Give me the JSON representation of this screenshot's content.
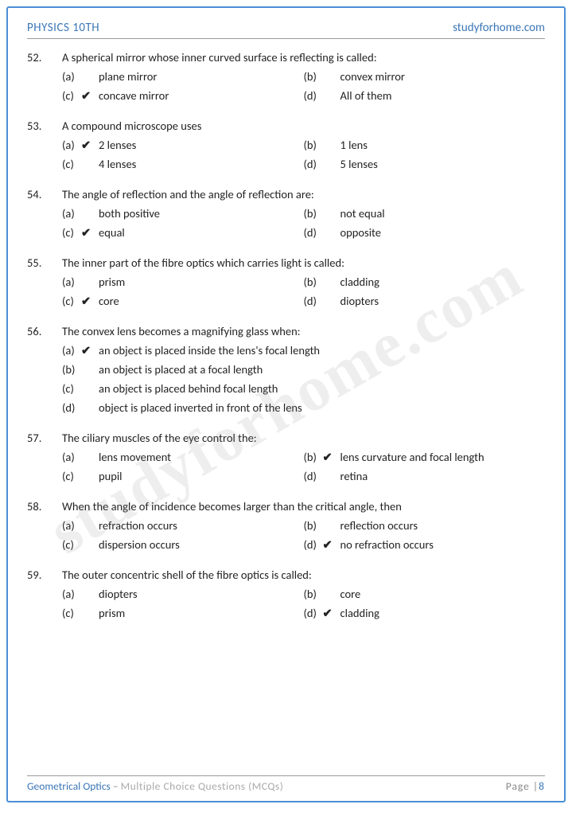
{
  "header": {
    "left": "PHYSICS 10TH",
    "right": "studyforhome.com"
  },
  "watermark": "studyforhome.com",
  "footer": {
    "topic": "Geometrical Optics",
    "sep": " – ",
    "desc": "Multiple Choice Questions (MCQs)",
    "page_label": "Page |",
    "page_num": "8"
  },
  "check_mark": "✔",
  "q": [
    {
      "n": "52.",
      "t": "A spherical mirror whose inner curved surface is reflecting is called:",
      "layout": "2col",
      "o": [
        {
          "l": "(a)",
          "v": "plane mirror",
          "c": false
        },
        {
          "l": "(b)",
          "v": "convex mirror",
          "c": false
        },
        {
          "l": "(c)",
          "v": "concave mirror",
          "c": true
        },
        {
          "l": "(d)",
          "v": "All of them",
          "c": false
        }
      ]
    },
    {
      "n": "53.",
      "t": "A compound microscope uses",
      "layout": "2col",
      "o": [
        {
          "l": "(a)",
          "v": "2 lenses",
          "c": true
        },
        {
          "l": "(b)",
          "v": "1 lens",
          "c": false
        },
        {
          "l": "(c)",
          "v": "4 lenses",
          "c": false
        },
        {
          "l": "(d)",
          "v": "5 lenses",
          "c": false
        }
      ]
    },
    {
      "n": "54.",
      "t": "The angle of reflection and the angle of reflection are:",
      "layout": "2col",
      "o": [
        {
          "l": "(a)",
          "v": "both positive",
          "c": false
        },
        {
          "l": "(b)",
          "v": "not equal",
          "c": false
        },
        {
          "l": "(c)",
          "v": "equal",
          "c": true
        },
        {
          "l": "(d)",
          "v": "opposite",
          "c": false
        }
      ]
    },
    {
      "n": "55.",
      "t": "The inner part of the fibre optics which carries light is called:",
      "layout": "2col",
      "o": [
        {
          "l": "(a)",
          "v": "prism",
          "c": false
        },
        {
          "l": "(b)",
          "v": "cladding",
          "c": false
        },
        {
          "l": "(c)",
          "v": "core",
          "c": true
        },
        {
          "l": "(d)",
          "v": "diopters",
          "c": false
        }
      ]
    },
    {
      "n": "56.",
      "t": "The convex lens becomes a magnifying glass when:",
      "layout": "1col",
      "o": [
        {
          "l": "(a)",
          "v": "an object is placed inside the lens's focal length",
          "c": true
        },
        {
          "l": "(b)",
          "v": "an object is placed at a focal length",
          "c": false
        },
        {
          "l": "(c)",
          "v": "an object is placed behind focal length",
          "c": false
        },
        {
          "l": "(d)",
          "v": "object is placed inverted in front of the lens",
          "c": false
        }
      ]
    },
    {
      "n": "57.",
      "t": "The ciliary muscles of the eye control the:",
      "layout": "2col",
      "o": [
        {
          "l": "(a)",
          "v": "lens movement",
          "c": false
        },
        {
          "l": "(b)",
          "v": "lens curvature and focal length",
          "c": true
        },
        {
          "l": "(c)",
          "v": "pupil",
          "c": false
        },
        {
          "l": "(d)",
          "v": "retina",
          "c": false
        }
      ]
    },
    {
      "n": "58.",
      "t": "When the angle of incidence becomes larger than the critical angle, then",
      "layout": "2col",
      "o": [
        {
          "l": "(a)",
          "v": "refraction occurs",
          "c": false
        },
        {
          "l": "(b)",
          "v": "reflection occurs",
          "c": false
        },
        {
          "l": "(c)",
          "v": "dispersion occurs",
          "c": false
        },
        {
          "l": "(d)",
          "v": "no refraction occurs",
          "c": true
        }
      ]
    },
    {
      "n": "59.",
      "t": "The outer concentric shell of the fibre optics is called:",
      "layout": "2col",
      "o": [
        {
          "l": "(a)",
          "v": "diopters",
          "c": false
        },
        {
          "l": "(b)",
          "v": "core",
          "c": false
        },
        {
          "l": "(c)",
          "v": "prism",
          "c": false
        },
        {
          "l": "(d)",
          "v": "cladding",
          "c": true
        }
      ]
    }
  ]
}
